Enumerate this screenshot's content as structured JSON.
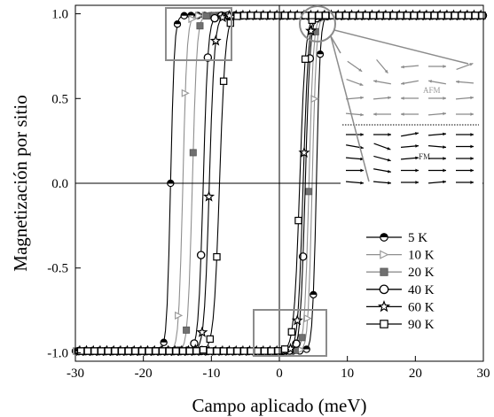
{
  "chart_data": {
    "type": "line",
    "title": "",
    "xlabel": "Campo aplicado (meV)",
    "ylabel": "Magnetización por sitio",
    "xlim": [
      -30,
      30
    ],
    "ylim": [
      -1.05,
      1.05
    ],
    "xticks": [
      -30,
      -20,
      -10,
      0,
      10,
      20,
      30
    ],
    "yticks": [
      -1.0,
      -0.5,
      0.0,
      0.5,
      1.0
    ],
    "x_tick_labels": [
      "-30",
      "-20",
      "-10",
      "0",
      "10",
      "20",
      "30"
    ],
    "y_tick_labels": [
      "-1.0",
      "-0.5",
      "0.0",
      "0.5",
      "1.0"
    ],
    "grid": false,
    "zero_lines": true,
    "legend_position": "bottom-right",
    "series": [
      {
        "name": "5 K",
        "marker": "half-filled-circle",
        "color": "#000000",
        "coercive_field": 16.0,
        "width": 0.55
      },
      {
        "name": "10 K",
        "marker": "triangle-right",
        "color": "#9a9a9a",
        "coercive_field": 14.2,
        "width": 0.6
      },
      {
        "name": "20 K",
        "marker": "filled-square",
        "color": "#707070",
        "coercive_field": 12.8,
        "width": 0.65
      },
      {
        "name": "40 K",
        "marker": "open-circle",
        "color": "#000000",
        "coercive_field": 11.2,
        "width": 0.7
      },
      {
        "name": "60 K",
        "marker": "star",
        "color": "#000000",
        "coercive_field": 10.3,
        "width": 0.75
      },
      {
        "name": "90 K",
        "marker": "open-square",
        "color": "#000000",
        "coercive_field": 8.8,
        "width": 0.85
      }
    ],
    "inset": {
      "label_top": "AFM",
      "label_bottom": "FM",
      "afm_angles": [
        [
          -35,
          -50,
          -175,
          0,
          20
        ],
        [
          -20,
          170,
          -170,
          170,
          175
        ],
        [
          5,
          5,
          180,
          0,
          5
        ],
        [
          -5,
          180,
          180,
          5,
          0
        ]
      ],
      "fm_angles": [
        [
          0,
          0,
          10,
          5,
          0
        ],
        [
          -10,
          -20,
          5,
          -5,
          0
        ],
        [
          -5,
          -15,
          5,
          0,
          0
        ],
        [
          0,
          -10,
          0,
          0,
          0
        ],
        [
          -5,
          -5,
          0,
          5,
          0
        ]
      ],
      "afm_color": "#8a8a8a",
      "fm_color": "#000000"
    },
    "highlight_boxes": 3,
    "highlight_circle": 1
  }
}
